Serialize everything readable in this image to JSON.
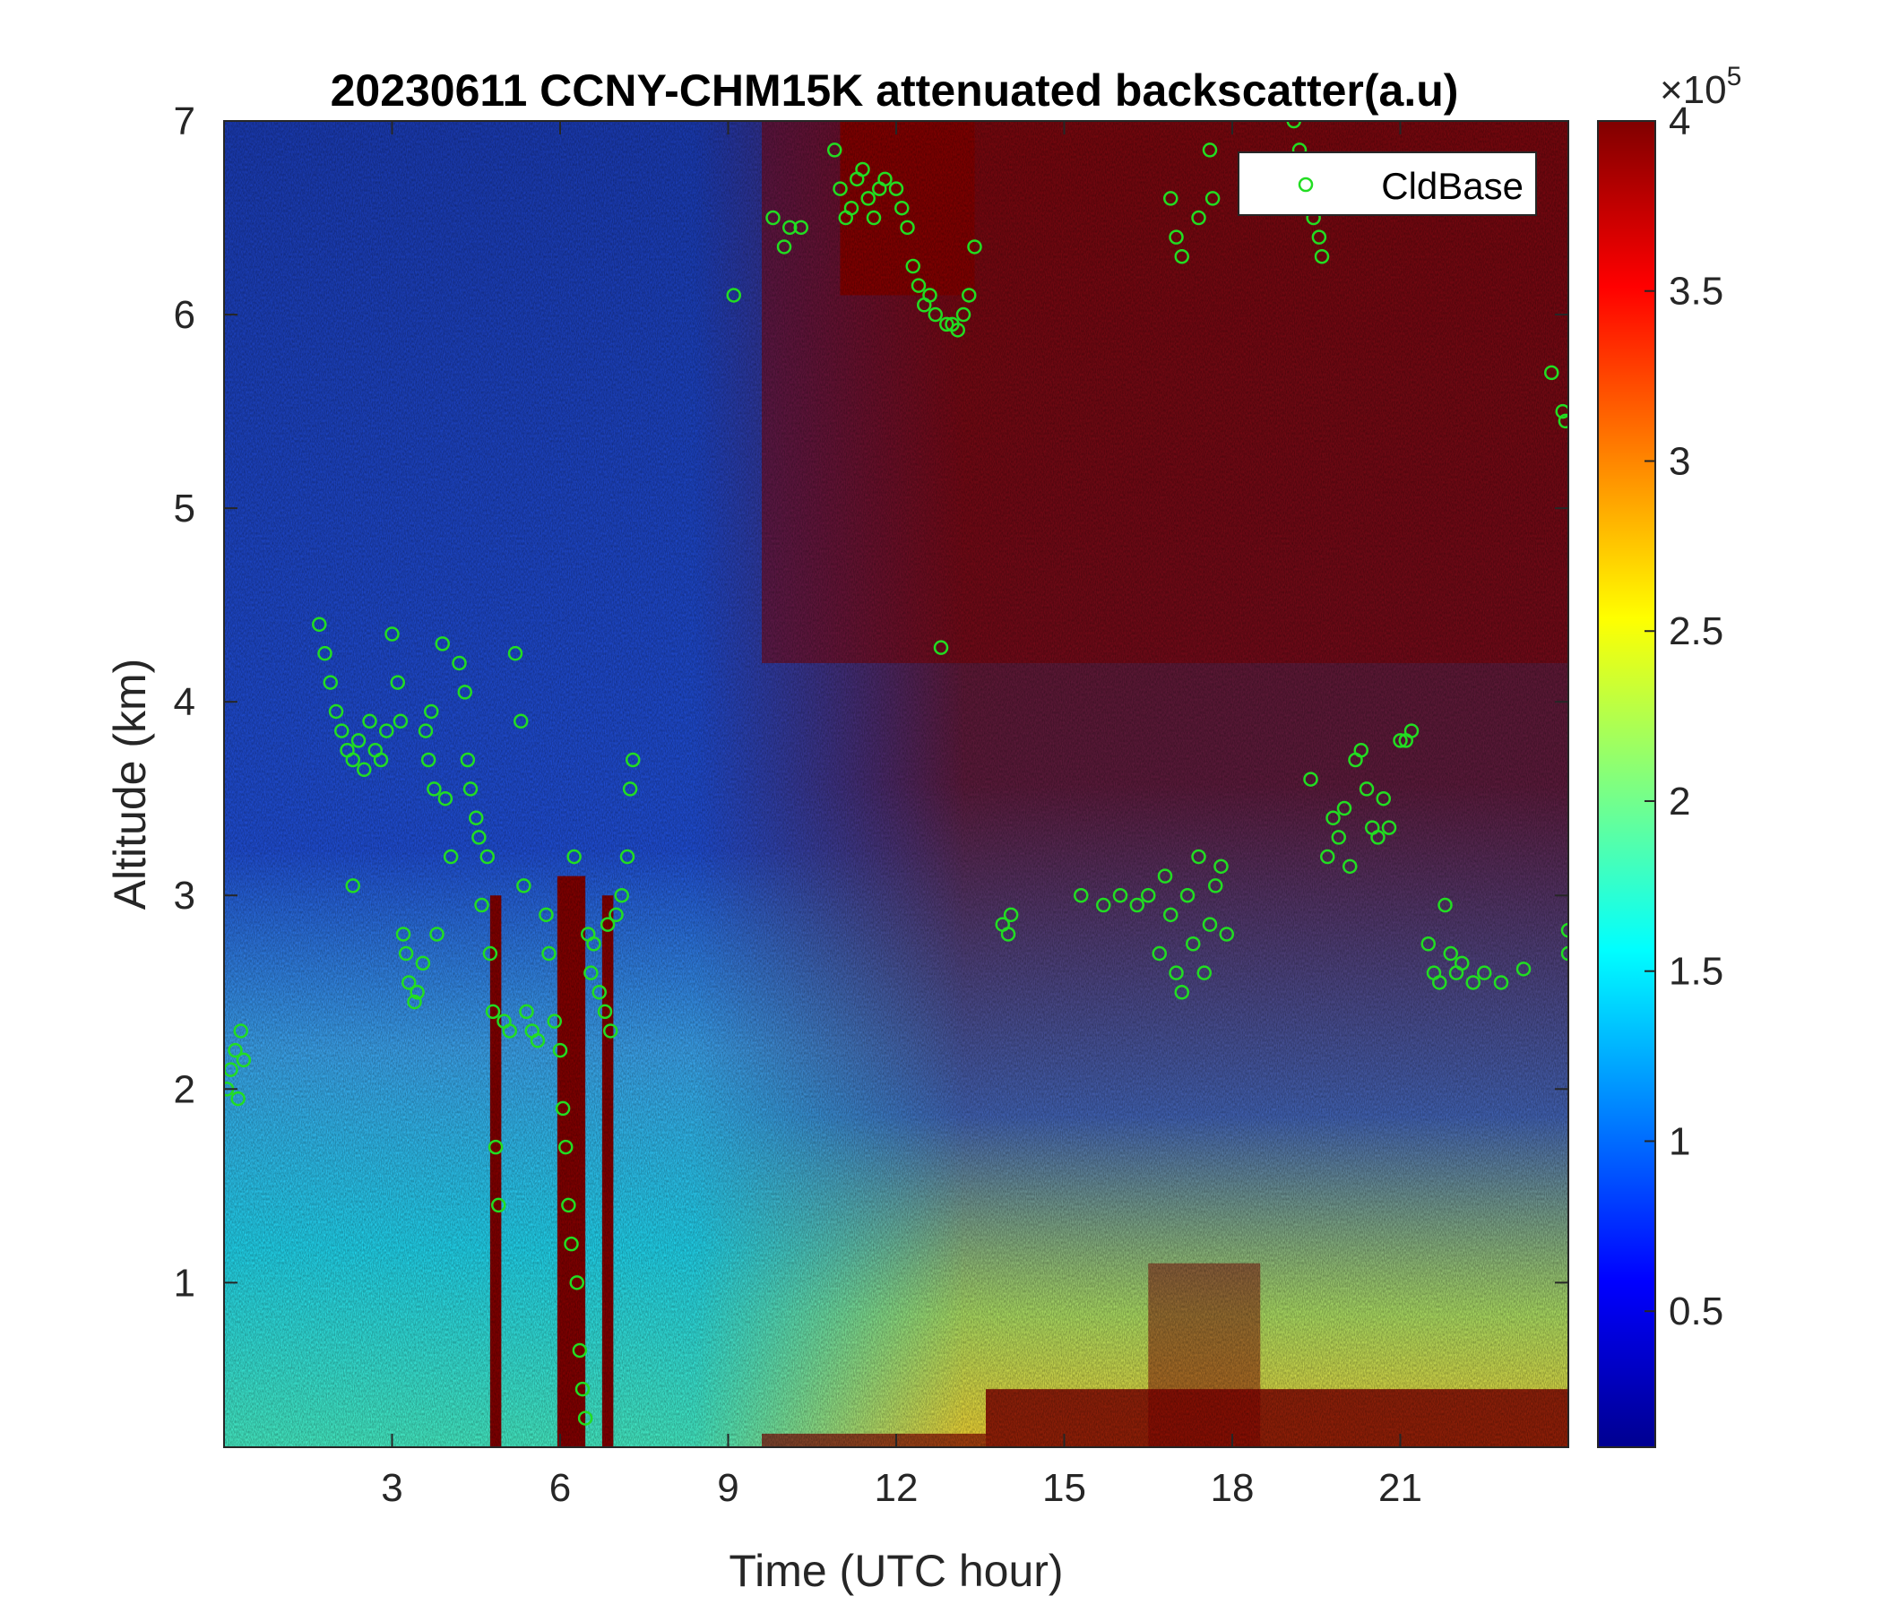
{
  "chart_data": {
    "type": "heatmap",
    "title": "20230611 CCNY-CHM15K attenuated backscatter(a.u)",
    "xlabel": "Time (UTC hour)",
    "ylabel": "Altitude (km)",
    "xlim": [
      0,
      24
    ],
    "ylim": [
      0.15,
      7
    ],
    "xticks": [
      3,
      6,
      9,
      12,
      15,
      18,
      21
    ],
    "yticks": [
      1,
      2,
      3,
      4,
      5,
      6,
      7
    ],
    "colorbar": {
      "colormap": "jet",
      "range": [
        0.1,
        4
      ],
      "ticks": [
        0.5,
        1,
        1.5,
        2,
        2.5,
        3,
        3.5,
        4
      ],
      "exponent_label": "×10",
      "exponent": "5"
    },
    "legend": {
      "position": "top-right",
      "entries": [
        "CldBase"
      ]
    },
    "colors": {
      "cldbase_marker": "#22dd22",
      "low_signal": "#0d1f9e",
      "high_signal": "#800000"
    },
    "background_regions_desc": "Vertical bars of strong signal near 4.8h, 6.0-6.4h, 6.8h; near-surface aerosol layer strong 13.5-24h; upper levels saturated (dark red) after ~9.5h",
    "series": [
      {
        "name": "CldBase",
        "marker": "circle",
        "points": [
          [
            0.05,
            2.0
          ],
          [
            0.12,
            2.1
          ],
          [
            0.2,
            2.2
          ],
          [
            0.25,
            1.95
          ],
          [
            0.3,
            2.3
          ],
          [
            0.35,
            2.15
          ],
          [
            1.7,
            4.4
          ],
          [
            1.8,
            4.25
          ],
          [
            1.9,
            4.1
          ],
          [
            2.0,
            3.95
          ],
          [
            2.1,
            3.85
          ],
          [
            2.2,
            3.75
          ],
          [
            2.3,
            3.7
          ],
          [
            2.4,
            3.8
          ],
          [
            2.5,
            3.65
          ],
          [
            2.6,
            3.9
          ],
          [
            2.7,
            3.75
          ],
          [
            2.8,
            3.7
          ],
          [
            2.9,
            3.85
          ],
          [
            3.0,
            4.35
          ],
          [
            2.3,
            3.05
          ],
          [
            3.1,
            4.1
          ],
          [
            3.15,
            3.9
          ],
          [
            3.2,
            2.8
          ],
          [
            3.25,
            2.7
          ],
          [
            3.3,
            2.55
          ],
          [
            3.4,
            2.45
          ],
          [
            3.45,
            2.5
          ],
          [
            3.55,
            2.65
          ],
          [
            3.6,
            3.85
          ],
          [
            3.65,
            3.7
          ],
          [
            3.7,
            3.95
          ],
          [
            3.75,
            3.55
          ],
          [
            3.8,
            2.8
          ],
          [
            3.9,
            4.3
          ],
          [
            3.95,
            3.5
          ],
          [
            4.05,
            3.2
          ],
          [
            4.2,
            4.2
          ],
          [
            4.3,
            4.05
          ],
          [
            4.35,
            3.7
          ],
          [
            4.4,
            3.55
          ],
          [
            4.5,
            3.4
          ],
          [
            4.55,
            3.3
          ],
          [
            4.6,
            2.95
          ],
          [
            4.7,
            3.2
          ],
          [
            4.75,
            2.7
          ],
          [
            4.8,
            2.4
          ],
          [
            4.85,
            1.7
          ],
          [
            4.9,
            1.4
          ],
          [
            5.0,
            2.35
          ],
          [
            5.1,
            2.3
          ],
          [
            5.2,
            4.25
          ],
          [
            5.3,
            3.9
          ],
          [
            5.35,
            3.05
          ],
          [
            5.4,
            2.4
          ],
          [
            5.5,
            2.3
          ],
          [
            5.6,
            2.25
          ],
          [
            5.75,
            2.9
          ],
          [
            5.8,
            2.7
          ],
          [
            5.9,
            2.35
          ],
          [
            6.0,
            2.2
          ],
          [
            6.05,
            1.9
          ],
          [
            6.1,
            1.7
          ],
          [
            6.15,
            1.4
          ],
          [
            6.2,
            1.2
          ],
          [
            6.25,
            3.2
          ],
          [
            6.3,
            1.0
          ],
          [
            6.35,
            0.65
          ],
          [
            6.4,
            0.45
          ],
          [
            6.45,
            0.3
          ],
          [
            6.5,
            2.8
          ],
          [
            6.55,
            2.6
          ],
          [
            6.6,
            2.75
          ],
          [
            6.7,
            2.5
          ],
          [
            6.8,
            2.4
          ],
          [
            6.85,
            2.85
          ],
          [
            6.9,
            2.3
          ],
          [
            7.0,
            2.9
          ],
          [
            7.1,
            3.0
          ],
          [
            7.2,
            3.2
          ],
          [
            7.25,
            3.55
          ],
          [
            7.3,
            3.7
          ],
          [
            9.1,
            6.1
          ],
          [
            9.8,
            6.5
          ],
          [
            10.0,
            6.35
          ],
          [
            10.1,
            6.45
          ],
          [
            10.3,
            6.45
          ],
          [
            10.9,
            6.85
          ],
          [
            11.0,
            6.65
          ],
          [
            11.1,
            6.5
          ],
          [
            11.2,
            6.55
          ],
          [
            11.3,
            6.7
          ],
          [
            11.4,
            6.75
          ],
          [
            11.5,
            6.6
          ],
          [
            11.6,
            6.5
          ],
          [
            11.7,
            6.65
          ],
          [
            11.8,
            6.7
          ],
          [
            12.0,
            6.65
          ],
          [
            12.1,
            6.55
          ],
          [
            12.2,
            6.45
          ],
          [
            12.3,
            6.25
          ],
          [
            12.4,
            6.15
          ],
          [
            12.5,
            6.05
          ],
          [
            12.6,
            6.1
          ],
          [
            12.7,
            6.0
          ],
          [
            12.8,
            4.28
          ],
          [
            12.9,
            5.95
          ],
          [
            13.0,
            5.95
          ],
          [
            13.1,
            5.92
          ],
          [
            13.2,
            6.0
          ],
          [
            13.3,
            6.1
          ],
          [
            13.4,
            6.35
          ],
          [
            13.9,
            2.85
          ],
          [
            14.0,
            2.8
          ],
          [
            14.05,
            2.9
          ],
          [
            15.3,
            3.0
          ],
          [
            15.7,
            2.95
          ],
          [
            16.0,
            3.0
          ],
          [
            16.3,
            2.95
          ],
          [
            16.5,
            3.0
          ],
          [
            16.7,
            2.7
          ],
          [
            16.8,
            3.1
          ],
          [
            16.9,
            2.9
          ],
          [
            17.0,
            2.6
          ],
          [
            17.1,
            2.5
          ],
          [
            17.2,
            3.0
          ],
          [
            17.3,
            2.75
          ],
          [
            17.4,
            3.2
          ],
          [
            17.5,
            2.6
          ],
          [
            17.6,
            2.85
          ],
          [
            17.7,
            3.05
          ],
          [
            17.8,
            3.15
          ],
          [
            17.9,
            2.8
          ],
          [
            16.9,
            6.6
          ],
          [
            17.0,
            6.4
          ],
          [
            17.1,
            6.3
          ],
          [
            17.4,
            6.5
          ],
          [
            17.6,
            6.85
          ],
          [
            17.65,
            6.6
          ],
          [
            19.1,
            7.0
          ],
          [
            19.2,
            6.85
          ],
          [
            19.3,
            6.7
          ],
          [
            19.45,
            6.5
          ],
          [
            19.55,
            6.4
          ],
          [
            19.6,
            6.3
          ],
          [
            19.4,
            3.6
          ],
          [
            19.7,
            3.2
          ],
          [
            19.8,
            3.4
          ],
          [
            19.9,
            3.3
          ],
          [
            20.0,
            3.45
          ],
          [
            20.1,
            3.15
          ],
          [
            20.2,
            3.7
          ],
          [
            20.3,
            3.75
          ],
          [
            20.4,
            3.55
          ],
          [
            20.5,
            3.35
          ],
          [
            20.6,
            3.3
          ],
          [
            20.7,
            3.5
          ],
          [
            20.8,
            3.35
          ],
          [
            21.0,
            3.8
          ],
          [
            21.1,
            3.8
          ],
          [
            21.2,
            3.85
          ],
          [
            21.5,
            2.75
          ],
          [
            21.6,
            2.6
          ],
          [
            21.7,
            2.55
          ],
          [
            21.8,
            2.95
          ],
          [
            21.9,
            2.7
          ],
          [
            22.0,
            2.6
          ],
          [
            22.1,
            2.65
          ],
          [
            22.3,
            2.55
          ],
          [
            22.5,
            2.6
          ],
          [
            22.8,
            2.55
          ],
          [
            23.2,
            2.62
          ],
          [
            23.7,
            5.7
          ],
          [
            23.9,
            5.5
          ],
          [
            23.95,
            5.45
          ],
          [
            24.0,
            2.7
          ],
          [
            24.0,
            2.82
          ]
        ]
      }
    ]
  }
}
